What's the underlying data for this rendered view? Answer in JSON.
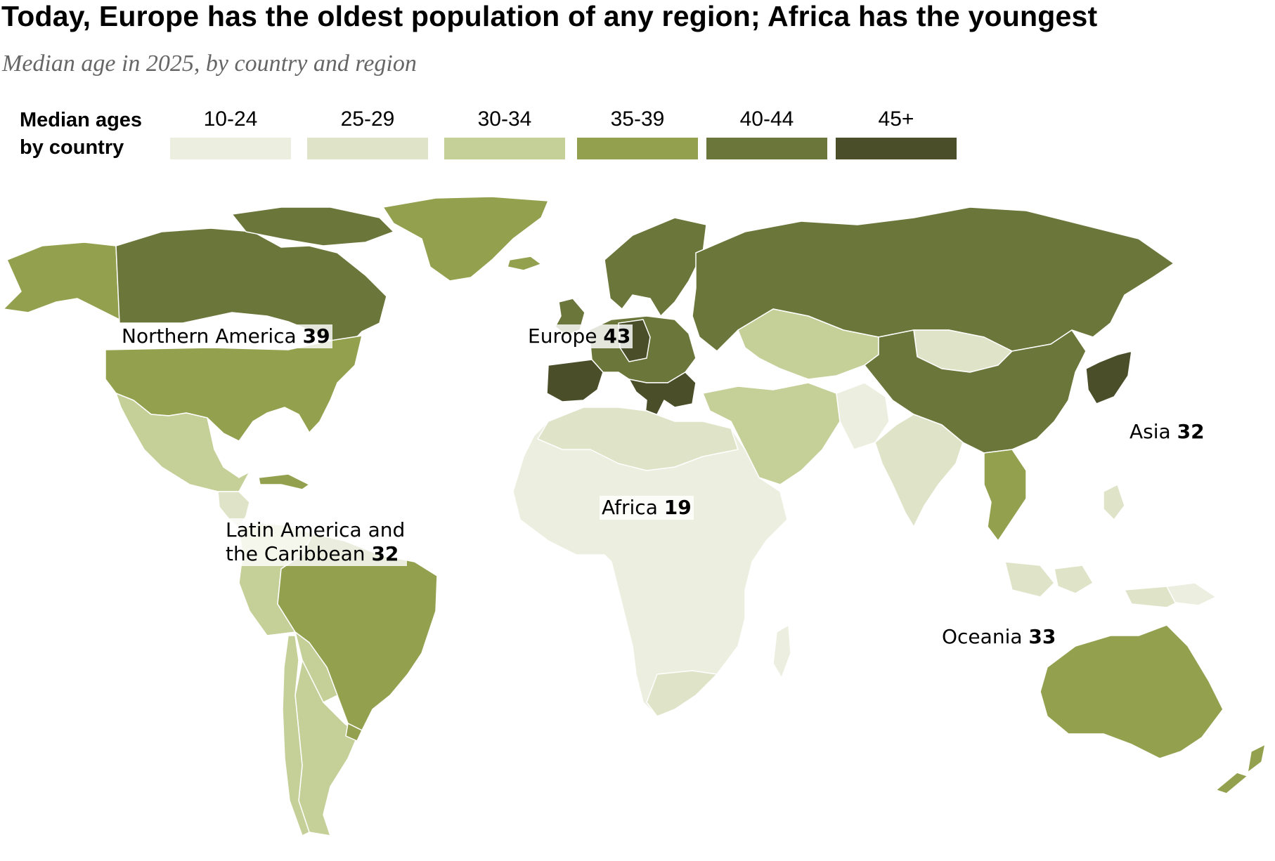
{
  "title": "Today, Europe has the oldest population of any region; Africa has the youngest",
  "subtitle": "Median age in 2025, by country and region",
  "legend": {
    "heading_line1": "Median ages",
    "heading_line2": "by country",
    "items": [
      {
        "label": "10-24",
        "color": "#eceedf"
      },
      {
        "label": "25-29",
        "color": "#dfe3c8"
      },
      {
        "label": "30-34",
        "color": "#c5cf98"
      },
      {
        "label": "35-39",
        "color": "#93a14f"
      },
      {
        "label": "40-44",
        "color": "#6b763a"
      },
      {
        "label": "45+",
        "color": "#4a4f2a"
      }
    ]
  },
  "regions": [
    {
      "name": "Northern America",
      "value": "39"
    },
    {
      "name": "Europe",
      "value": "43"
    },
    {
      "name": "Asia",
      "value": "32"
    },
    {
      "name": "Africa",
      "value": "19"
    },
    {
      "name_line1": "Latin America and",
      "name_line2": "the Caribbean",
      "value": "32"
    },
    {
      "name": "Oceania",
      "value": "33"
    }
  ]
}
